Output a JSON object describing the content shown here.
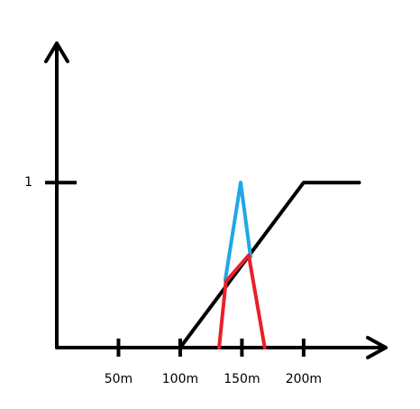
{
  "chart_data": {
    "type": "line",
    "xlim": [
      0,
      268
    ],
    "ylim": [
      0,
      1.86
    ],
    "xticks": [
      {
        "value": 50,
        "label": "50m"
      },
      {
        "value": 100,
        "label": "100m"
      },
      {
        "value": 150,
        "label": "150m"
      },
      {
        "value": 200,
        "label": "200m"
      }
    ],
    "yticks": [
      1
    ],
    "grid": false,
    "series": [
      {
        "color": "#000000",
        "x": [
          100,
          200,
          245
        ],
        "values": [
          0,
          1,
          1
        ]
      },
      {
        "color": "#1ea8e6",
        "x": [
          136.5,
          149,
          157
        ],
        "values": [
          0.41,
          1,
          0.55
        ]
      },
      {
        "color": "#e8202a",
        "x": [
          131.5,
          137,
          155.5,
          168.5
        ],
        "values": [
          0,
          0.4,
          0.56,
          0
        ]
      }
    ]
  }
}
